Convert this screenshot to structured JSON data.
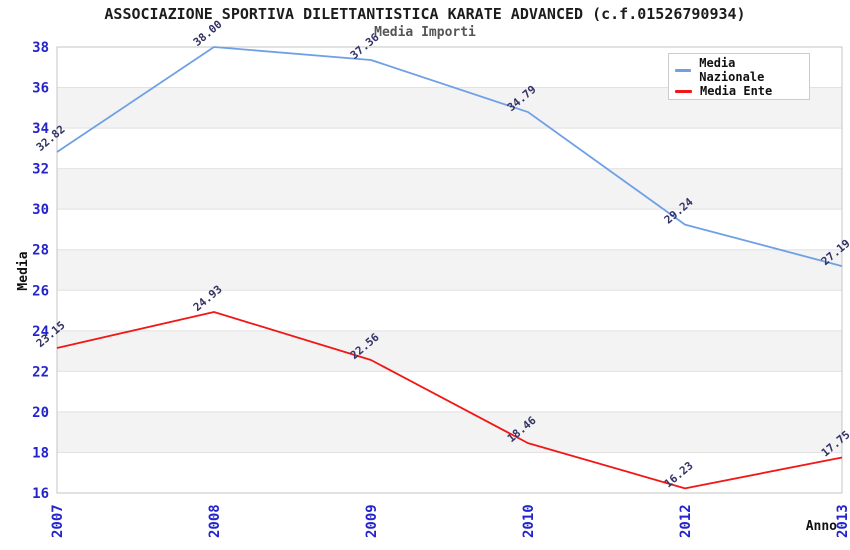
{
  "header": {
    "title": "ASSOCIAZIONE SPORTIVA DILETTANTISTICA KARATE ADVANCED (c.f.01526790934)",
    "subtitle": "Media Importi"
  },
  "colors": {
    "band": "#f3f3f3",
    "grid": "#e2e2e2",
    "border": "#c4c4c4",
    "tick_label": "#2424cc",
    "point_label": "#333366",
    "axis_label": "#111111"
  },
  "chart_data": {
    "type": "line",
    "title": "ASSOCIAZIONE SPORTIVA DILETTANTISTICA KARATE ADVANCED (c.f.01526790934)",
    "subtitle": "Media Importi",
    "categories": [
      "2007",
      "2008",
      "2009",
      "2010",
      "2012",
      "2013"
    ],
    "series": [
      {
        "name": "Media Nazionale",
        "color": "#6fa0e6",
        "values": [
          32.82,
          38.0,
          37.36,
          34.79,
          29.24,
          27.19
        ]
      },
      {
        "name": "Media Ente",
        "color": "#f21717",
        "values": [
          23.15,
          24.93,
          22.56,
          18.46,
          16.23,
          17.75
        ]
      }
    ],
    "xlabel": "Anno",
    "ylabel": "Media",
    "ylim": [
      16,
      38
    ],
    "yticks": [
      16,
      18,
      20,
      22,
      24,
      26,
      28,
      30,
      32,
      34,
      36,
      38
    ],
    "grid": true,
    "alternating_bands": true,
    "legend_position": "top-right",
    "point_labels_decimals": 2
  }
}
